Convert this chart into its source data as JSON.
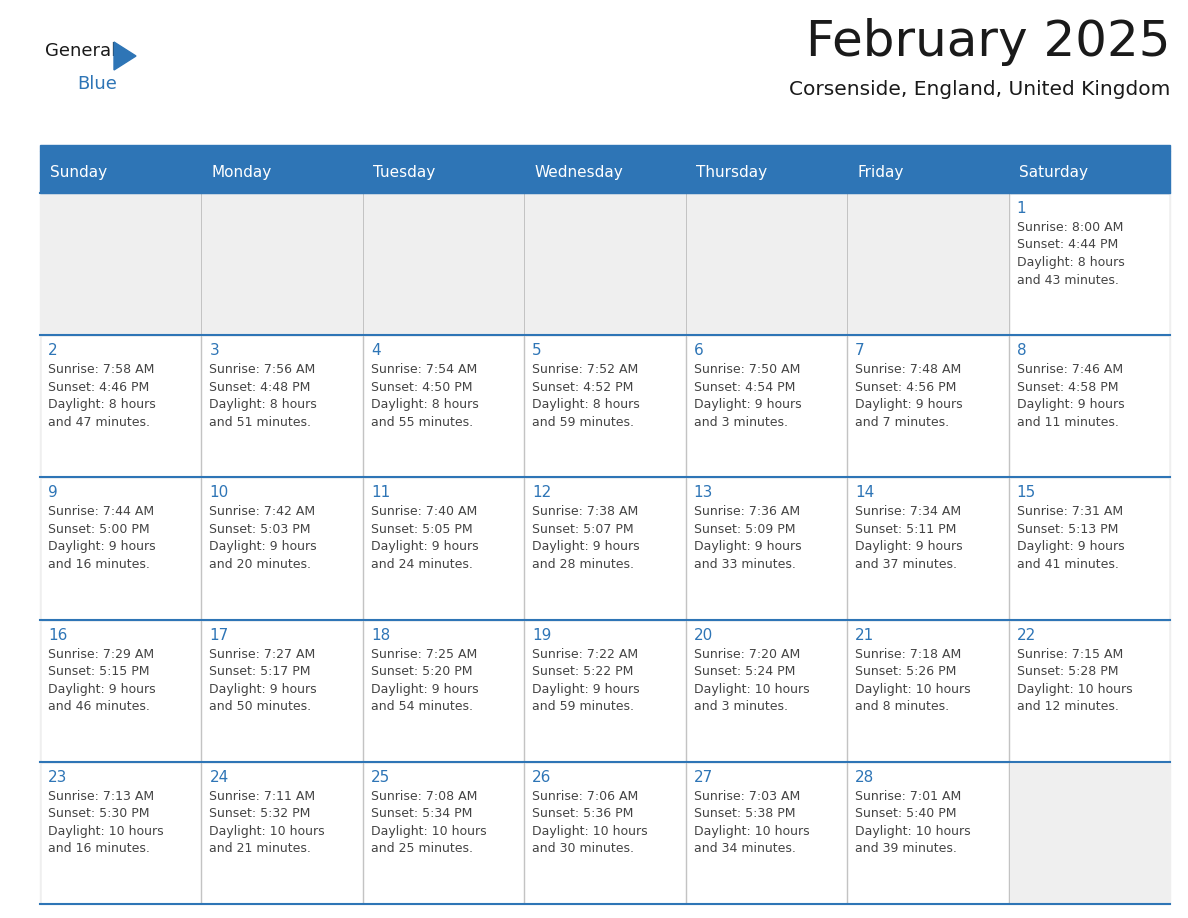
{
  "title": "February 2025",
  "subtitle": "Corsenside, England, United Kingdom",
  "header_bg": "#2E75B6",
  "header_text_color": "#FFFFFF",
  "cell_bg_gray": "#EFEFEF",
  "cell_bg_white": "#FFFFFF",
  "border_color": "#2E75B6",
  "day_headers": [
    "Sunday",
    "Monday",
    "Tuesday",
    "Wednesday",
    "Thursday",
    "Friday",
    "Saturday"
  ],
  "title_color": "#1A1A1A",
  "subtitle_color": "#1A1A1A",
  "text_color": "#444444",
  "day_num_color": "#2E75B6",
  "logo_general_color": "#1A1A1A",
  "logo_blue_color": "#2E75B6",
  "days": [
    {
      "date": 1,
      "row": 0,
      "col": 6,
      "sunrise": "8:00 AM",
      "sunset": "4:44 PM",
      "daylight": "8 hours and 43 minutes."
    },
    {
      "date": 2,
      "row": 1,
      "col": 0,
      "sunrise": "7:58 AM",
      "sunset": "4:46 PM",
      "daylight": "8 hours and 47 minutes."
    },
    {
      "date": 3,
      "row": 1,
      "col": 1,
      "sunrise": "7:56 AM",
      "sunset": "4:48 PM",
      "daylight": "8 hours and 51 minutes."
    },
    {
      "date": 4,
      "row": 1,
      "col": 2,
      "sunrise": "7:54 AM",
      "sunset": "4:50 PM",
      "daylight": "8 hours and 55 minutes."
    },
    {
      "date": 5,
      "row": 1,
      "col": 3,
      "sunrise": "7:52 AM",
      "sunset": "4:52 PM",
      "daylight": "8 hours and 59 minutes."
    },
    {
      "date": 6,
      "row": 1,
      "col": 4,
      "sunrise": "7:50 AM",
      "sunset": "4:54 PM",
      "daylight": "9 hours and 3 minutes."
    },
    {
      "date": 7,
      "row": 1,
      "col": 5,
      "sunrise": "7:48 AM",
      "sunset": "4:56 PM",
      "daylight": "9 hours and 7 minutes."
    },
    {
      "date": 8,
      "row": 1,
      "col": 6,
      "sunrise": "7:46 AM",
      "sunset": "4:58 PM",
      "daylight": "9 hours and 11 minutes."
    },
    {
      "date": 9,
      "row": 2,
      "col": 0,
      "sunrise": "7:44 AM",
      "sunset": "5:00 PM",
      "daylight": "9 hours and 16 minutes."
    },
    {
      "date": 10,
      "row": 2,
      "col": 1,
      "sunrise": "7:42 AM",
      "sunset": "5:03 PM",
      "daylight": "9 hours and 20 minutes."
    },
    {
      "date": 11,
      "row": 2,
      "col": 2,
      "sunrise": "7:40 AM",
      "sunset": "5:05 PM",
      "daylight": "9 hours and 24 minutes."
    },
    {
      "date": 12,
      "row": 2,
      "col": 3,
      "sunrise": "7:38 AM",
      "sunset": "5:07 PM",
      "daylight": "9 hours and 28 minutes."
    },
    {
      "date": 13,
      "row": 2,
      "col": 4,
      "sunrise": "7:36 AM",
      "sunset": "5:09 PM",
      "daylight": "9 hours and 33 minutes."
    },
    {
      "date": 14,
      "row": 2,
      "col": 5,
      "sunrise": "7:34 AM",
      "sunset": "5:11 PM",
      "daylight": "9 hours and 37 minutes."
    },
    {
      "date": 15,
      "row": 2,
      "col": 6,
      "sunrise": "7:31 AM",
      "sunset": "5:13 PM",
      "daylight": "9 hours and 41 minutes."
    },
    {
      "date": 16,
      "row": 3,
      "col": 0,
      "sunrise": "7:29 AM",
      "sunset": "5:15 PM",
      "daylight": "9 hours and 46 minutes."
    },
    {
      "date": 17,
      "row": 3,
      "col": 1,
      "sunrise": "7:27 AM",
      "sunset": "5:17 PM",
      "daylight": "9 hours and 50 minutes."
    },
    {
      "date": 18,
      "row": 3,
      "col": 2,
      "sunrise": "7:25 AM",
      "sunset": "5:20 PM",
      "daylight": "9 hours and 54 minutes."
    },
    {
      "date": 19,
      "row": 3,
      "col": 3,
      "sunrise": "7:22 AM",
      "sunset": "5:22 PM",
      "daylight": "9 hours and 59 minutes."
    },
    {
      "date": 20,
      "row": 3,
      "col": 4,
      "sunrise": "7:20 AM",
      "sunset": "5:24 PM",
      "daylight": "10 hours and 3 minutes."
    },
    {
      "date": 21,
      "row": 3,
      "col": 5,
      "sunrise": "7:18 AM",
      "sunset": "5:26 PM",
      "daylight": "10 hours and 8 minutes."
    },
    {
      "date": 22,
      "row": 3,
      "col": 6,
      "sunrise": "7:15 AM",
      "sunset": "5:28 PM",
      "daylight": "10 hours and 12 minutes."
    },
    {
      "date": 23,
      "row": 4,
      "col": 0,
      "sunrise": "7:13 AM",
      "sunset": "5:30 PM",
      "daylight": "10 hours and 16 minutes."
    },
    {
      "date": 24,
      "row": 4,
      "col": 1,
      "sunrise": "7:11 AM",
      "sunset": "5:32 PM",
      "daylight": "10 hours and 21 minutes."
    },
    {
      "date": 25,
      "row": 4,
      "col": 2,
      "sunrise": "7:08 AM",
      "sunset": "5:34 PM",
      "daylight": "10 hours and 25 minutes."
    },
    {
      "date": 26,
      "row": 4,
      "col": 3,
      "sunrise": "7:06 AM",
      "sunset": "5:36 PM",
      "daylight": "10 hours and 30 minutes."
    },
    {
      "date": 27,
      "row": 4,
      "col": 4,
      "sunrise": "7:03 AM",
      "sunset": "5:38 PM",
      "daylight": "10 hours and 34 minutes."
    },
    {
      "date": 28,
      "row": 4,
      "col": 5,
      "sunrise": "7:01 AM",
      "sunset": "5:40 PM",
      "daylight": "10 hours and 39 minutes."
    }
  ],
  "fig_width": 11.88,
  "fig_height": 9.18,
  "dpi": 100
}
